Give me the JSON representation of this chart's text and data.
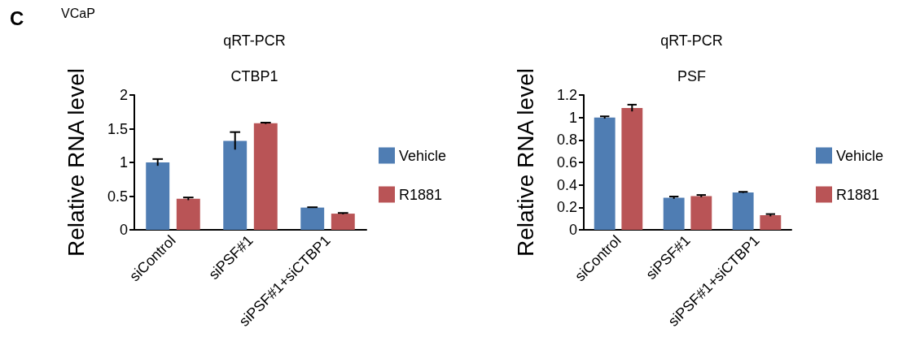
{
  "chart_data": [
    {
      "type": "bar",
      "title": "qRT-PCR",
      "subtitle": "CTBP1",
      "ylabel": "Relative RNA level",
      "annotations": [
        "C",
        "VCaP"
      ],
      "categories": [
        "siControl",
        "siPSF#1",
        "siPSF#1+siCTBP1"
      ],
      "series": [
        {
          "name": "Vehicle",
          "color": "#4f7db3",
          "values": [
            1.0,
            1.32,
            0.33
          ],
          "errors": [
            0.05,
            0.13,
            0.005
          ]
        },
        {
          "name": "R1881",
          "color": "#b95456",
          "values": [
            0.46,
            1.58,
            0.24
          ],
          "errors": [
            0.02,
            0.01,
            0.01
          ]
        }
      ],
      "ylim": [
        0,
        2
      ],
      "yticks": [
        0,
        0.5,
        1,
        1.5,
        2
      ],
      "grid": false,
      "legend": "right"
    },
    {
      "type": "bar",
      "title": "qRT-PCR",
      "subtitle": "PSF",
      "ylabel": "Relative RNA level",
      "categories": [
        "siControl",
        "siPSF#1",
        "siPSF#1+siCTBP1"
      ],
      "series": [
        {
          "name": "Vehicle",
          "color": "#4f7db3",
          "values": [
            1.0,
            0.286,
            0.333
          ],
          "errors": [
            0.01,
            0.01,
            0.005
          ]
        },
        {
          "name": "R1881",
          "color": "#b95456",
          "values": [
            1.084,
            0.3,
            0.13
          ],
          "errors": [
            0.03,
            0.01,
            0.01
          ]
        }
      ],
      "ylim": [
        0,
        1.2
      ],
      "yticks": [
        0,
        0.2,
        0.4,
        0.6,
        0.8,
        1,
        1.2
      ],
      "grid": false,
      "legend": "right"
    }
  ]
}
